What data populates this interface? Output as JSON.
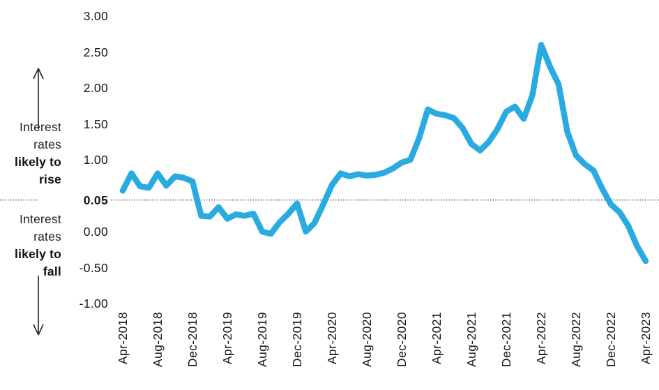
{
  "annotations": {
    "rise": {
      "l1": "Interest",
      "l2": "rates",
      "l3": "likely to",
      "l4": "rise"
    },
    "fall": {
      "l1": "Interest",
      "l2": "rates",
      "l3": "likely to",
      "l4": "fall"
    }
  },
  "chart_data": {
    "type": "line",
    "title": "",
    "xlabel": "",
    "ylabel": "",
    "grid": false,
    "legend": "none",
    "x_start": "Apr-2018",
    "x_end": "Apr-2023",
    "frequency": "monthly",
    "x_tick_labels": [
      "Apr-2018",
      "Aug-2018",
      "Dec-2018",
      "Apr-2019",
      "Aug-2019",
      "Dec-2019",
      "Apr-2020",
      "Aug-2020",
      "Dec-2020",
      "Apr-2021",
      "Aug-2021",
      "Dec-2021",
      "Apr-2022",
      "Aug-2022",
      "Dec-2022",
      "Apr-2023"
    ],
    "x_tick_every_months": 4,
    "y_ticks": [
      {
        "label": "3.00",
        "at": 3.0
      },
      {
        "label": "2.50",
        "at": 2.5
      },
      {
        "label": "2.00",
        "at": 2.0
      },
      {
        "label": "1.50",
        "at": 1.5
      },
      {
        "label": "1.00",
        "at": 1.0
      },
      {
        "label": "0.05",
        "at": 0.44,
        "bold": true
      },
      {
        "label": "0.00",
        "at": 0.0
      },
      {
        "label": "-0.50",
        "at": -0.5
      },
      {
        "label": "-1.00",
        "at": -1.0
      }
    ],
    "ylim": [
      -1.35,
      3.1
    ],
    "reference_line": {
      "label": "0.05",
      "at": 0.44,
      "style": "dotted",
      "color": "#333333"
    },
    "series": [
      {
        "name": "interest-rate-expectations",
        "color": "#29ABE2",
        "values": [
          0.57,
          0.81,
          0.63,
          0.61,
          0.81,
          0.64,
          0.77,
          0.75,
          0.7,
          0.22,
          0.21,
          0.34,
          0.18,
          0.24,
          0.22,
          0.25,
          0.0,
          -0.03,
          0.13,
          0.25,
          0.39,
          0.0,
          0.12,
          0.38,
          0.65,
          0.81,
          0.77,
          0.8,
          0.78,
          0.79,
          0.82,
          0.88,
          0.96,
          1.0,
          1.3,
          1.7,
          1.64,
          1.62,
          1.58,
          1.44,
          1.22,
          1.13,
          1.25,
          1.43,
          1.67,
          1.74,
          1.57,
          1.9,
          2.6,
          2.3,
          2.05,
          1.39,
          1.06,
          0.94,
          0.85,
          0.6,
          0.38,
          0.27,
          0.08,
          -0.2,
          -0.41
        ]
      }
    ]
  }
}
